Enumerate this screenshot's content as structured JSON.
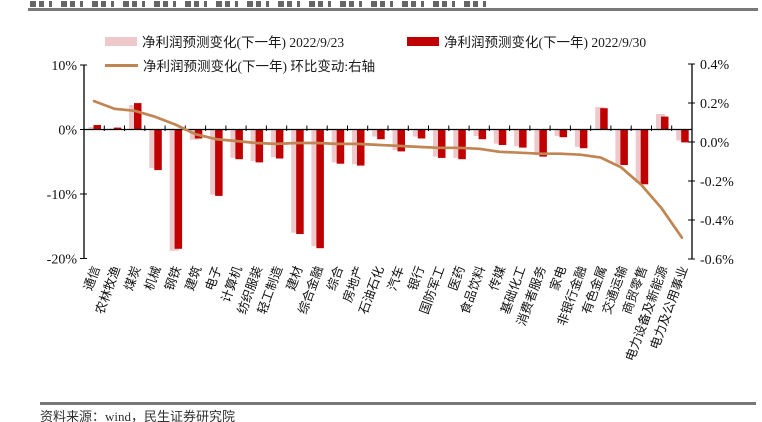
{
  "footer": {
    "source": "资料来源：wind，民生证券研究院"
  },
  "chart_data": {
    "type": "bar",
    "title": "",
    "categories": [
      "通信",
      "农林牧渔",
      "煤炭",
      "机械",
      "钢铁",
      "建筑",
      "电子",
      "计算机",
      "纺织服装",
      "轻工制造",
      "建材",
      "综合金融",
      "综合",
      "房地产",
      "石油石化",
      "汽车",
      "银行",
      "国防军工",
      "医药",
      "食品饮料",
      "传媒",
      "基础化工",
      "消费者服务",
      "家电",
      "非银行金融",
      "有色金属",
      "交通运输",
      "商贸零售",
      "电力设备及新能源",
      "电力及公用事业"
    ],
    "series": [
      {
        "name": "净利润预测变化(下一年) 2022/9/23",
        "type": "bar",
        "axis": "left",
        "color": "#eec9cc",
        "values": [
          0.4,
          0.1,
          3.8,
          -6.0,
          -18.8,
          -1.6,
          -10.1,
          -4.4,
          -4.9,
          -4.3,
          -16.0,
          -18.1,
          -5.1,
          -5.4,
          -1.1,
          -3.2,
          -1.1,
          -4.2,
          -4.4,
          -1.0,
          -2.2,
          -2.6,
          -4.0,
          -1.0,
          -2.7,
          3.5,
          -5.4,
          -8.3,
          2.4,
          -1.7
        ]
      },
      {
        "name": "净利润预测变化(下一年) 2022/9/30",
        "type": "bar",
        "axis": "left",
        "color": "#c00000",
        "values": [
          0.7,
          0.3,
          4.1,
          -6.3,
          -18.5,
          -1.4,
          -10.3,
          -4.6,
          -5.1,
          -4.5,
          -16.2,
          -18.4,
          -5.3,
          -5.6,
          -1.5,
          -3.4,
          -1.4,
          -4.4,
          -4.6,
          -1.5,
          -2.4,
          -2.8,
          -4.2,
          -1.2,
          -2.9,
          3.3,
          -5.5,
          -8.5,
          2.0,
          -2.0
        ]
      },
      {
        "name": "净利润预测变化(下一年) 环比变动:右轴",
        "type": "line",
        "axis": "right",
        "color": "#c08552",
        "values": [
          0.21,
          0.17,
          0.16,
          0.13,
          0.09,
          0.04,
          0.015,
          0.005,
          -0.005,
          -0.01,
          -0.005,
          -0.005,
          -0.01,
          -0.01,
          -0.015,
          -0.02,
          -0.025,
          -0.03,
          -0.03,
          -0.035,
          -0.05,
          -0.055,
          -0.06,
          -0.06,
          -0.065,
          -0.08,
          -0.13,
          -0.22,
          -0.34,
          -0.49
        ]
      }
    ],
    "left_axis": {
      "min": -20,
      "max": 10,
      "ticks": [
        {
          "label": "10%",
          "value": 10
        },
        {
          "label": "0%",
          "value": 0
        },
        {
          "label": "-10%",
          "value": -10
        },
        {
          "label": "-20%",
          "value": -20
        }
      ]
    },
    "right_axis": {
      "min": -0.6,
      "max": 0.4,
      "ticks": [
        {
          "label": "0.4%",
          "value": 0.4
        },
        {
          "label": "0.2%",
          "value": 0.2
        },
        {
          "label": "0.0%",
          "value": 0.0
        },
        {
          "label": "-0.2%",
          "value": -0.2
        },
        {
          "label": "-0.4%",
          "value": -0.4
        },
        {
          "label": "-0.6%",
          "value": -0.6
        }
      ]
    },
    "grid": false,
    "legend_position": "top"
  }
}
